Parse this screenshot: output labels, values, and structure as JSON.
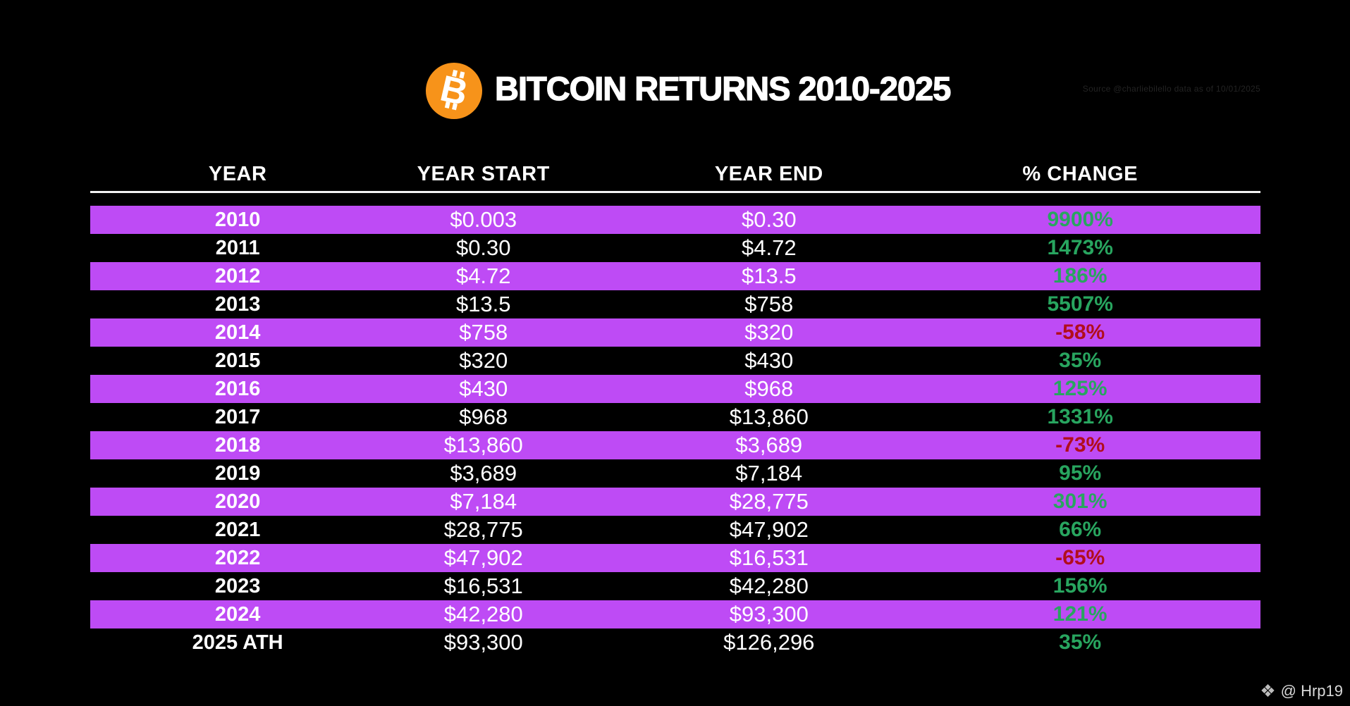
{
  "header": {
    "title": "BITCOIN RETURNS 2010-2025",
    "source_note": "Source @charliebilello data as of 10/01/2025"
  },
  "chart_data": {
    "type": "table",
    "title": "BITCOIN RETURNS 2010-2025",
    "columns": [
      "YEAR",
      "YEAR START",
      "YEAR END",
      "% CHANGE"
    ],
    "rows": [
      {
        "year": "2010",
        "year_start": "$0.003",
        "year_end": "$0.30",
        "pct_change": "9900%"
      },
      {
        "year": "2011",
        "year_start": "$0.30",
        "year_end": "$4.72",
        "pct_change": "1473%"
      },
      {
        "year": "2012",
        "year_start": "$4.72",
        "year_end": "$13.5",
        "pct_change": "186%"
      },
      {
        "year": "2013",
        "year_start": "$13.5",
        "year_end": "$758",
        "pct_change": "5507%"
      },
      {
        "year": "2014",
        "year_start": "$758",
        "year_end": "$320",
        "pct_change": "-58%"
      },
      {
        "year": "2015",
        "year_start": "$320",
        "year_end": "$430",
        "pct_change": "35%"
      },
      {
        "year": "2016",
        "year_start": "$430",
        "year_end": "$968",
        "pct_change": "125%"
      },
      {
        "year": "2017",
        "year_start": "$968",
        "year_end": "$13,860",
        "pct_change": "1331%"
      },
      {
        "year": "2018",
        "year_start": "$13,860",
        "year_end": "$3,689",
        "pct_change": "-73%"
      },
      {
        "year": "2019",
        "year_start": "$3,689",
        "year_end": "$7,184",
        "pct_change": "95%"
      },
      {
        "year": "2020",
        "year_start": "$7,184",
        "year_end": "$28,775",
        "pct_change": "301%"
      },
      {
        "year": "2021",
        "year_start": "$28,775",
        "year_end": "$47,902",
        "pct_change": "66%"
      },
      {
        "year": "2022",
        "year_start": "$47,902",
        "year_end": "$16,531",
        "pct_change": "-65%"
      },
      {
        "year": "2023",
        "year_start": "$16,531",
        "year_end": "$42,280",
        "pct_change": "156%"
      },
      {
        "year": "2024",
        "year_start": "$42,280",
        "year_end": "$93,300",
        "pct_change": "121%"
      },
      {
        "year": "2025 ATH",
        "year_start": "$93,300",
        "year_end": "$126,296",
        "pct_change": "35%"
      }
    ]
  },
  "watermark": {
    "icon": "binance-diamond-icon",
    "handle": "@ Hrp19"
  },
  "colors": {
    "background": "#000000",
    "row_highlight_purple": "#BE4BF5",
    "positive_green": "#28A55F",
    "negative_red": "#B10D1C",
    "bitcoin_orange": "#F7931A",
    "text_white": "#FFFFFF"
  }
}
